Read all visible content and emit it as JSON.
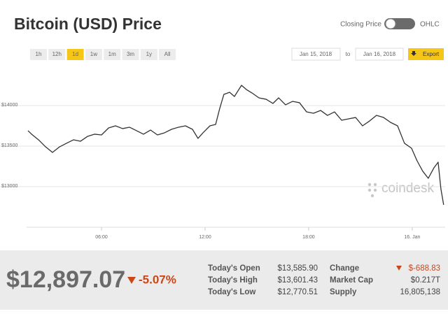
{
  "header": {
    "title": "Bitcoin (USD) Price",
    "toggle_left": "Closing Price",
    "toggle_right": "OHLC"
  },
  "controls": {
    "ranges": [
      "1h",
      "12h",
      "1d",
      "1w",
      "1m",
      "3m",
      "1y",
      "All"
    ],
    "from_date": "Jan 15, 2018",
    "to_label": "to",
    "to_date": "Jan 16, 2018",
    "export": "Export"
  },
  "chart_data": {
    "type": "line",
    "color": "#333333",
    "grid": true,
    "watermark": "coindesk",
    "x": [
      1.74,
      1.95,
      2.35,
      2.76,
      3.16,
      3.57,
      3.97,
      4.38,
      4.78,
      5.19,
      5.59,
      6.0,
      6.41,
      6.81,
      7.22,
      7.62,
      8.03,
      8.43,
      8.84,
      9.24,
      9.65,
      10.05,
      10.46,
      10.86,
      11.27,
      11.59,
      11.88,
      12.28,
      12.61,
      12.85,
      13.09,
      13.42,
      13.7,
      14.11,
      14.39,
      14.72,
      15.12,
      15.53,
      15.93,
      16.26,
      16.66,
      17.07,
      17.47,
      17.88,
      18.28,
      18.69,
      19.09,
      19.5,
      19.91,
      20.31,
      20.72,
      21.12,
      21.53,
      21.93,
      22.34,
      22.74,
      23.15,
      23.55,
      23.96,
      24.28,
      24.61,
      24.93,
      25.26,
      25.5,
      25.66,
      25.82
    ],
    "values": [
      13690,
      13647,
      13578,
      13491,
      13422,
      13491,
      13535,
      13578,
      13560,
      13620,
      13647,
      13638,
      13724,
      13750,
      13716,
      13733,
      13690,
      13647,
      13698,
      13638,
      13664,
      13707,
      13733,
      13750,
      13707,
      13595,
      13664,
      13750,
      13767,
      13966,
      14138,
      14164,
      14112,
      14250,
      14198,
      14155,
      14095,
      14078,
      14026,
      14095,
      14009,
      14052,
      14035,
      13922,
      13905,
      13940,
      13879,
      13922,
      13819,
      13836,
      13853,
      13750,
      13810,
      13879,
      13853,
      13793,
      13750,
      13535,
      13474,
      13319,
      13190,
      13103,
      13233,
      13302,
      12974,
      12776
    ],
    "xlim": [
      1.66,
      25.91
    ],
    "xticks": [
      {
        "value": 6,
        "label": "06:00"
      },
      {
        "value": 12,
        "label": "12:00"
      },
      {
        "value": 18,
        "label": "18:00"
      },
      {
        "value": 24,
        "label": "16. Jan"
      }
    ],
    "ylim": [
      12500,
      14500
    ],
    "yticks": [
      {
        "value": 13000,
        "label": "$13000"
      },
      {
        "value": 13500,
        "label": "$13500"
      },
      {
        "value": 14000,
        "label": "$14000"
      }
    ]
  },
  "summary": {
    "price": "$12,897.07",
    "change_percent": "-5.07%",
    "stats": [
      {
        "label": "Today's Open",
        "value": "$13,585.90"
      },
      {
        "label": "Today's High",
        "value": "$13,601.43"
      },
      {
        "label": "Today's Low",
        "value": "$12,770.51"
      },
      {
        "label": "Change",
        "value": "$-688.83"
      },
      {
        "label": "Market Cap",
        "value": "$0.217T"
      },
      {
        "label": "Supply",
        "value": "16,805,138"
      }
    ]
  }
}
